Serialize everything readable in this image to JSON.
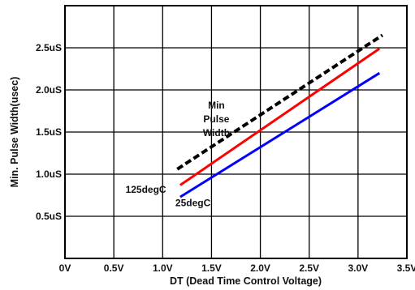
{
  "chart_data": {
    "type": "line",
    "title": "",
    "xlabel": "DT (Dead Time Control Voltage)",
    "ylabel": "Min. Pulse Width(usec)",
    "xlim": [
      0,
      3.5
    ],
    "ylim": [
      0,
      3.0
    ],
    "grid": true,
    "x_ticks": [
      {
        "value": 0,
        "label": "0V"
      },
      {
        "value": 0.5,
        "label": "0.5V"
      },
      {
        "value": 1.0,
        "label": "1.0V"
      },
      {
        "value": 1.5,
        "label": "1.5V"
      },
      {
        "value": 2.0,
        "label": "2.0V"
      },
      {
        "value": 2.5,
        "label": "2.5V"
      },
      {
        "value": 3.0,
        "label": "3.0V"
      },
      {
        "value": 3.5,
        "label": "3.5V"
      }
    ],
    "y_ticks": [
      {
        "value": 0.5,
        "label": "0.5uS"
      },
      {
        "value": 1.0,
        "label": "1.0uS"
      },
      {
        "value": 1.5,
        "label": "1.5uS"
      },
      {
        "value": 2.0,
        "label": "2.0uS"
      },
      {
        "value": 2.5,
        "label": "2.5uS"
      }
    ],
    "y_gridlines": [
      0.5,
      1.0,
      1.5,
      2.0,
      2.5,
      3.0
    ],
    "series": [
      {
        "name": "Min Pulse Width",
        "color": "#000000",
        "dashed": true,
        "x": [
          1.15,
          3.25
        ],
        "y": [
          1.06,
          2.65
        ]
      },
      {
        "name": "125degC",
        "color": "#ff0000",
        "dashed": false,
        "x": [
          1.18,
          3.22
        ],
        "y": [
          0.87,
          2.49
        ]
      },
      {
        "name": "25degC",
        "color": "#0000ff",
        "dashed": false,
        "x": [
          1.18,
          3.22
        ],
        "y": [
          0.73,
          2.2
        ]
      }
    ],
    "annotations": [
      {
        "lines": [
          "Min",
          "Pulse",
          "Width"
        ],
        "at": {
          "x": 1.55,
          "y": 1.78
        },
        "anchor": "middle"
      },
      {
        "lines": [
          "125degC"
        ],
        "at": {
          "x": 0.62,
          "y": 0.78
        },
        "anchor": "start"
      },
      {
        "lines": [
          "25degC"
        ],
        "at": {
          "x": 1.13,
          "y": 0.62
        },
        "anchor": "start"
      }
    ]
  }
}
